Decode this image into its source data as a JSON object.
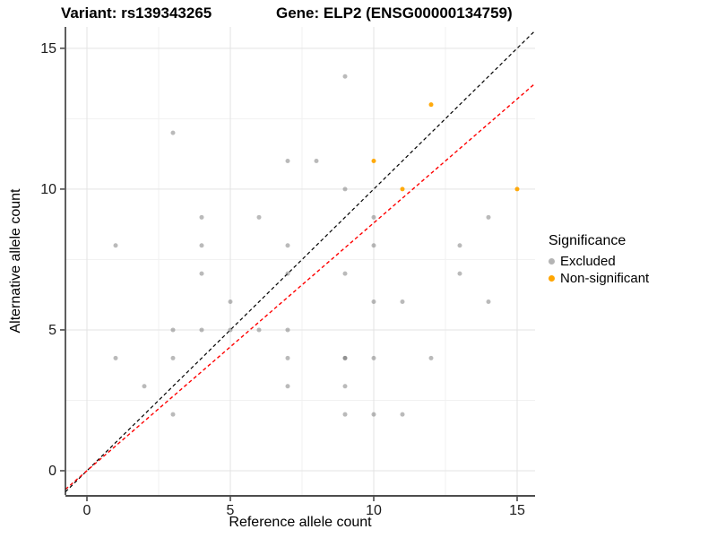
{
  "titles": {
    "variant": "Variant: rs139343265",
    "gene": "Gene: ELP2 (ENSG00000134759)"
  },
  "axes": {
    "x_label": "Reference allele count",
    "y_label": "Alternative allele count",
    "x_ticks": [
      0,
      5,
      10,
      15
    ],
    "y_ticks": [
      0,
      5,
      10,
      15
    ],
    "x_minor_ticks": [
      2.5,
      7.5,
      12.5
    ],
    "y_minor_ticks": [
      2.5,
      7.5,
      12.5
    ],
    "x_domain": [
      -0.75,
      15.625
    ],
    "y_domain": [
      -0.86,
      15.76
    ]
  },
  "legend": {
    "title": "Significance",
    "items": [
      {
        "label": "Excluded",
        "color": "#b4b4b4"
      },
      {
        "label": "Non-significant",
        "color": "#FFA500"
      }
    ]
  },
  "colors": {
    "excluded_point": "#5a5a5a",
    "nonsignificant_point": "#FFA500",
    "identity_line": "#000000",
    "ratio_line": "#FF0000",
    "grid_major": "#e3e3e3",
    "grid_minor": "#f1f1f1",
    "axis_line_bottom": "#4d4d4d",
    "axis_line_left": "#1a1a1a",
    "tick": "#333333",
    "tick_label": "#1a1a1a"
  },
  "chart_data": {
    "type": "scatter",
    "title": "Variant: rs139343265  Gene: ELP2 (ENSG00000134759)",
    "xlabel": "Reference allele count",
    "ylabel": "Alternative allele count",
    "xlim": [
      -0.75,
      15.625
    ],
    "ylim": [
      -0.86,
      15.76
    ],
    "grid": true,
    "legend_position": "right",
    "series": [
      {
        "name": "Excluded",
        "color": "gray",
        "points": [
          [
            1,
            4
          ],
          [
            1,
            8
          ],
          [
            2,
            3
          ],
          [
            3,
            2
          ],
          [
            3,
            4
          ],
          [
            3,
            5
          ],
          [
            3,
            12
          ],
          [
            4,
            5
          ],
          [
            4,
            7
          ],
          [
            4,
            8
          ],
          [
            4,
            9
          ],
          [
            5,
            5
          ],
          [
            5,
            6
          ],
          [
            6,
            5
          ],
          [
            6,
            9
          ],
          [
            7,
            3
          ],
          [
            7,
            4
          ],
          [
            7,
            5
          ],
          [
            7,
            7
          ],
          [
            7,
            8
          ],
          [
            7,
            11
          ],
          [
            8,
            11
          ],
          [
            9,
            2
          ],
          [
            9,
            3
          ],
          [
            9,
            4
          ],
          [
            9,
            4
          ],
          [
            9,
            7
          ],
          [
            9,
            10
          ],
          [
            9,
            14
          ],
          [
            10,
            2
          ],
          [
            10,
            4
          ],
          [
            10,
            6
          ],
          [
            10,
            8
          ],
          [
            10,
            9
          ],
          [
            11,
            2
          ],
          [
            11,
            6
          ],
          [
            12,
            4
          ],
          [
            13,
            7
          ],
          [
            13,
            8
          ],
          [
            14,
            6
          ],
          [
            14,
            9
          ]
        ]
      },
      {
        "name": "Non-significant",
        "color": "orange",
        "points": [
          [
            10,
            11
          ],
          [
            11,
            10
          ],
          [
            12,
            13
          ],
          [
            15,
            10
          ]
        ]
      }
    ],
    "lines": [
      {
        "name": "identity",
        "slope": 1.0,
        "intercept": 0,
        "style": "dashed",
        "color": "black"
      },
      {
        "name": "allelic-ratio",
        "slope": 0.88,
        "intercept": 0,
        "style": "dashed",
        "color": "red"
      }
    ]
  }
}
